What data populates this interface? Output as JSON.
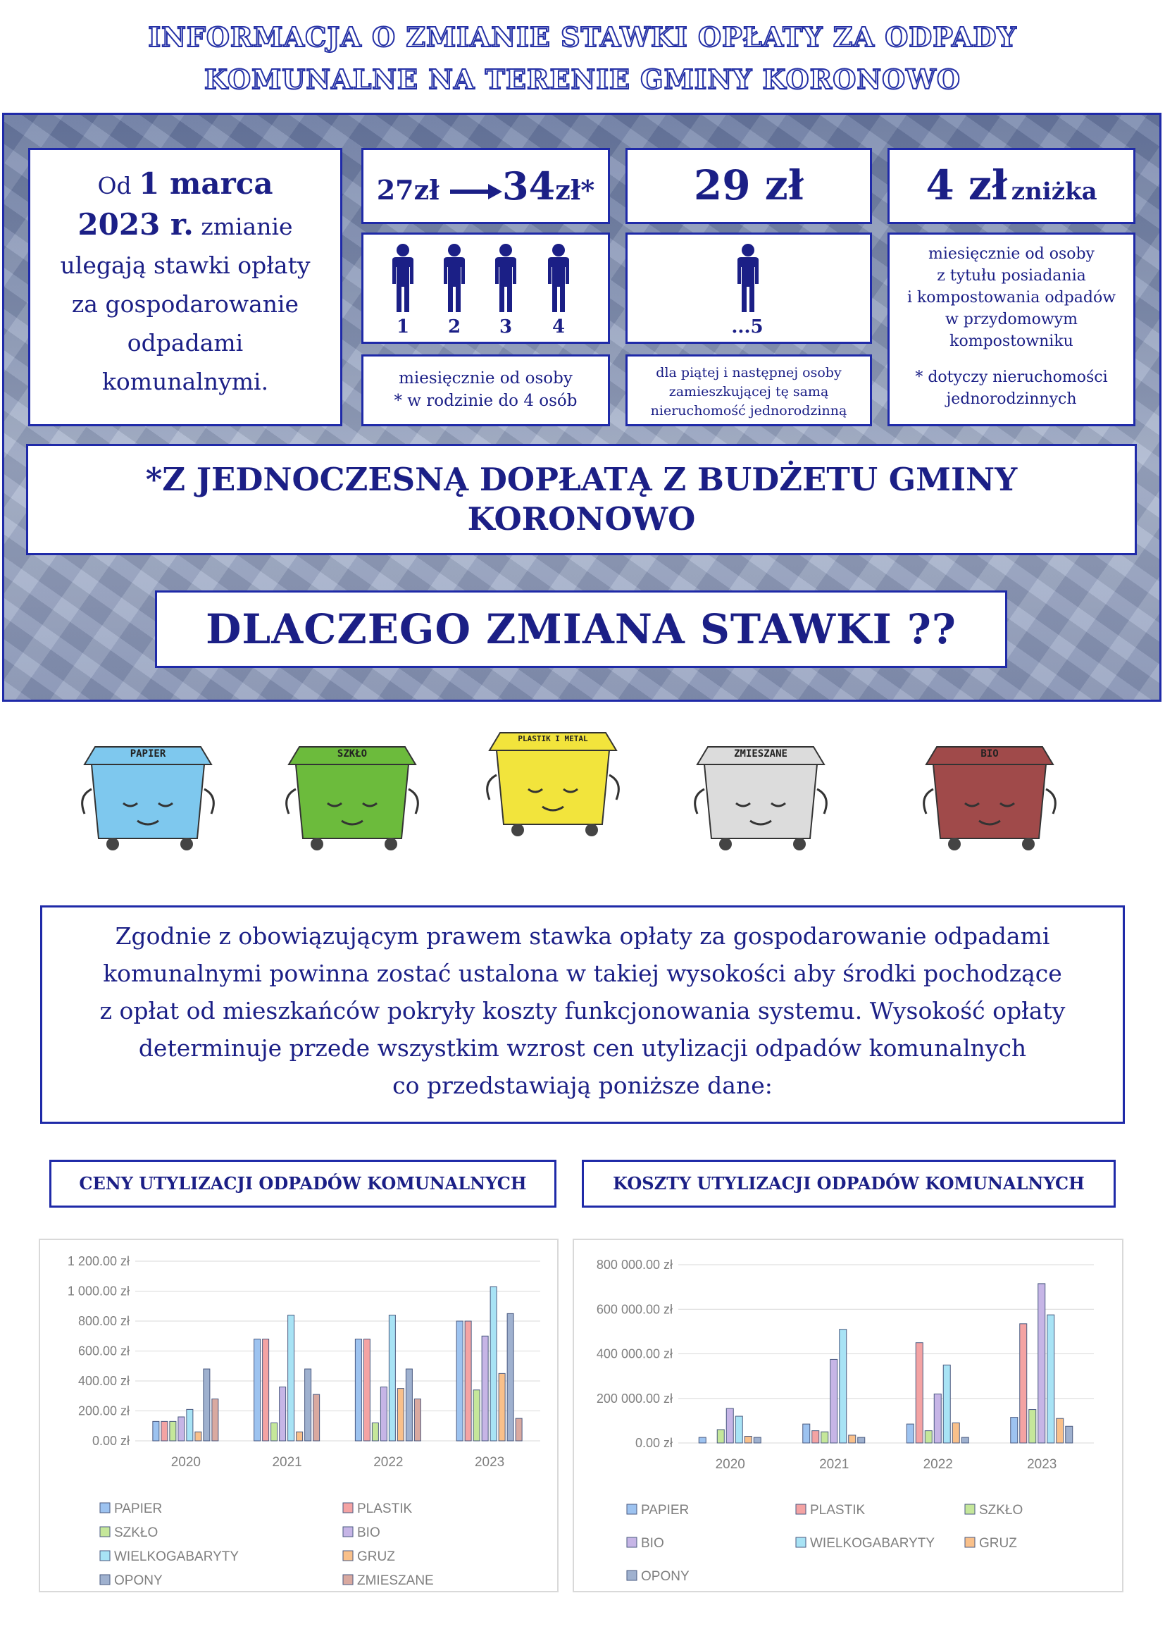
{
  "title": {
    "line1": "INFORMACJA O ZMIANIE STAWKI OPŁATY ZA ODPADY",
    "line2": "KOMUNALNE NA TERENIE GMINY KORONOWO"
  },
  "intro_box": {
    "prefix": "Od",
    "date": "1 marca 2023 r.",
    "rest": "zmianie ulegają stawki opłaty za gospodarowanie odpadami komunalnymi."
  },
  "rate_box_1": {
    "old": "27zł",
    "new": "34",
    "new_unit": "zł*",
    "people_numbers": [
      "1",
      "2",
      "3",
      "4"
    ],
    "note_line1": "miesięcznie od osoby",
    "note_line2": "*  w rodzinie do 4 osób"
  },
  "rate_box_2": {
    "amount": "29 zł",
    "person_label": "...5",
    "note_line1": "dla piątej i następnej osoby",
    "note_line2": "zamieszkującej tę samą",
    "note_line3": "nieruchomość jednorodzinną"
  },
  "rate_box_3": {
    "amount": "4 zł",
    "suffix": "zniżka",
    "note_line1": "miesięcznie od osoby",
    "note_line2": "z tytułu posiadania",
    "note_line3": "i kompostowania odpadów",
    "note_line4": "w przydomowym",
    "note_line5": "kompostowniku",
    "note_line6": "* dotyczy nieruchomości",
    "note_line7": "jednorodzinnych"
  },
  "subsidy": {
    "line1": "*Z JEDNOCZESNĄ DOPŁATĄ Z BUDŻETU GMINY",
    "line2": "KORONOWO"
  },
  "why": "DLACZEGO ZMIANA STAWKI ??",
  "bins": [
    {
      "label": "PAPIER",
      "color": "#7ec8ee"
    },
    {
      "label": "SZKŁO",
      "color": "#6cbb3c"
    },
    {
      "label": "PLASTIK I METAL",
      "color": "#f2e43c"
    },
    {
      "label": "ZMIESZANE",
      "color": "#dcdcdc"
    },
    {
      "label": "BIO",
      "color": "#a04a4a"
    }
  ],
  "explanation": {
    "line1": "Zgodnie z obowiązującym prawem stawka opłaty za gospodarowanie odpadami",
    "line2": "komunalnymi powinna zostać ustalona w takiej wysokości aby środki pochodzące",
    "line3": "z opłat od mieszkańców  pokryły koszty funkcjonowania systemu. Wysokość opłaty",
    "line4": "determinuje przede wszystkim wzrost cen utylizacji odpadów komunalnych",
    "line5": "co przedstawiają poniższe dane:"
  },
  "chart_data": [
    {
      "type": "bar",
      "title": "CENY UTYLIZACJI ODPADÓW KOMUNALNYCH",
      "categories": [
        "2020",
        "2021",
        "2022",
        "2023"
      ],
      "ylim": [
        0,
        1200
      ],
      "yticks": [
        "0.00 zł",
        "200.00 zł",
        "400.00 zł",
        "600.00 zł",
        "800.00 zł",
        "1 000.00 zł",
        "1 200.00 zł"
      ],
      "ytick_values": [
        0,
        200,
        400,
        600,
        800,
        1000,
        1200
      ],
      "grid": true,
      "legend_position": "bottom",
      "series": [
        {
          "name": "PAPIER",
          "color": "#9dc3f0",
          "values": [
            130,
            680,
            680,
            800
          ]
        },
        {
          "name": "PLASTIK",
          "color": "#f4a3a3",
          "values": [
            130,
            680,
            680,
            800
          ]
        },
        {
          "name": "SZKŁO",
          "color": "#c5e79a",
          "values": [
            130,
            120,
            120,
            340
          ]
        },
        {
          "name": "BIO",
          "color": "#c6b5e6",
          "values": [
            160,
            360,
            360,
            700
          ]
        },
        {
          "name": "WIELKOGABARYTY",
          "color": "#a8e3f5",
          "values": [
            210,
            840,
            840,
            1030
          ]
        },
        {
          "name": "GRUZ",
          "color": "#f9c08a",
          "values": [
            60,
            60,
            350,
            450
          ]
        },
        {
          "name": "OPONY",
          "color": "#9fb1cf",
          "values": [
            480,
            480,
            480,
            850
          ]
        },
        {
          "name": "ZMIESZANE",
          "color": "#d9a9a0",
          "values": [
            280,
            310,
            280,
            150
          ]
        }
      ]
    },
    {
      "type": "bar",
      "title": "KOSZTY UTYLIZACJI ODPADÓW KOMUNALNYCH",
      "categories": [
        "2020",
        "2021",
        "2022",
        "2023"
      ],
      "ylim": [
        0,
        800000
      ],
      "yticks": [
        "0.00 zł",
        "200 000.00 zł",
        "400 000.00 zł",
        "600 000.00 zł",
        "800 000.00 zł"
      ],
      "ytick_values": [
        0,
        200000,
        400000,
        600000,
        800000
      ],
      "grid": true,
      "legend_position": "bottom",
      "series": [
        {
          "name": "PAPIER",
          "color": "#9dc3f0",
          "values": [
            25000,
            85000,
            85000,
            115000
          ]
        },
        {
          "name": "PLASTIK",
          "color": "#f4a3a3",
          "values": [
            0,
            55000,
            450000,
            535000
          ]
        },
        {
          "name": "SZKŁO",
          "color": "#c5e79a",
          "values": [
            60000,
            50000,
            55000,
            150000
          ]
        },
        {
          "name": "BIO",
          "color": "#c6b5e6",
          "values": [
            155000,
            375000,
            220000,
            715000
          ]
        },
        {
          "name": "WIELKOGABARYTY",
          "color": "#a8e3f5",
          "values": [
            120000,
            510000,
            350000,
            575000
          ]
        },
        {
          "name": "GRUZ",
          "color": "#f9c08a",
          "values": [
            30000,
            35000,
            90000,
            110000
          ]
        },
        {
          "name": "OPONY",
          "color": "#9fb1cf",
          "values": [
            25000,
            25000,
            25000,
            75000
          ]
        }
      ]
    }
  ]
}
